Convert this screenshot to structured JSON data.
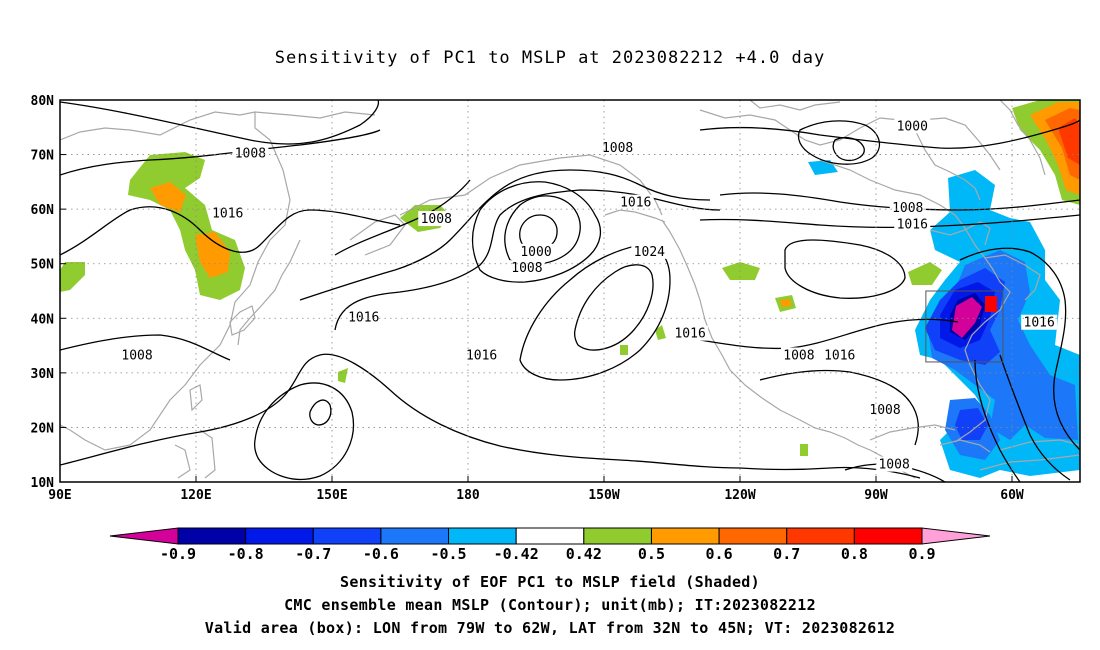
{
  "title": "Sensitivity of PC1 to MSLP at 2023082212 +4.0 day",
  "lat_labels": [
    "80N",
    "70N",
    "60N",
    "50N",
    "40N",
    "30N",
    "20N",
    "10N"
  ],
  "lon_labels": [
    "90E",
    "120E",
    "150E",
    "180",
    "150W",
    "120W",
    "90W",
    "60W"
  ],
  "contour_labels": [
    {
      "text": "1008",
      "lon": 132,
      "lat": 70
    },
    {
      "text": "1016",
      "lon": 127,
      "lat": 59
    },
    {
      "text": "1008",
      "lon": 173,
      "lat": 58
    },
    {
      "text": "1016",
      "lon": 157,
      "lat": 40
    },
    {
      "text": "1008",
      "lon": 107,
      "lat": 33
    },
    {
      "text": "1016",
      "lon": 183,
      "lat": 33
    },
    {
      "text": "1000",
      "lon": 195,
      "lat": 52
    },
    {
      "text": "1008",
      "lon": 193,
      "lat": 49
    },
    {
      "text": "1008",
      "lon": 213,
      "lat": 71
    },
    {
      "text": "1016",
      "lon": 217,
      "lat": 61
    },
    {
      "text": "1024",
      "lon": 220,
      "lat": 52
    },
    {
      "text": "1016",
      "lon": 229,
      "lat": 37
    },
    {
      "text": "1008",
      "lon": 253,
      "lat": 33
    },
    {
      "text": "1016",
      "lon": 262,
      "lat": 33
    },
    {
      "text": "1000",
      "lon": 278,
      "lat": 75
    },
    {
      "text": "1008",
      "lon": 277,
      "lat": 60
    },
    {
      "text": "1016",
      "lon": 278,
      "lat": 57
    },
    {
      "text": "1016",
      "lon": 306,
      "lat": 39
    },
    {
      "text": "1008",
      "lon": 272,
      "lat": 23
    },
    {
      "text": "1008",
      "lon": 274,
      "lat": 13
    }
  ],
  "colorbar": {
    "colors": [
      "#d4009a",
      "#0000a8",
      "#0018e8",
      "#1040f8",
      "#1c78f8",
      "#00b8f8",
      "#ffffff",
      "#90cc30",
      "#ff9a00",
      "#ff6800",
      "#ff3800",
      "#ff0000",
      "#ffa0d8"
    ],
    "labels": [
      "-0.9",
      "-0.8",
      "-0.7",
      "-0.6",
      "-0.5",
      "-0.42",
      "0.42",
      "0.5",
      "0.6",
      "0.7",
      "0.8",
      "0.9"
    ]
  },
  "caption": {
    "line1": "Sensitivity of EOF PC1 to MSLP field (Shaded)",
    "line2": "CMC ensemble mean MSLP (Contour); unit(mb); IT:2023082212",
    "line3": "Valid area (box): LON from 79W to 62W, LAT from 32N to 45N; VT: 2023082612"
  }
}
